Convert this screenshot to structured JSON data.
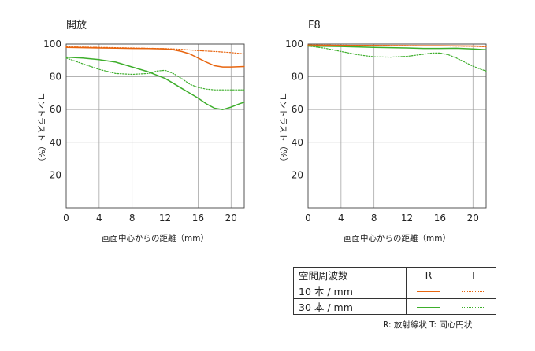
{
  "colors": {
    "r10": "#E8650F",
    "r30": "#3DAE2B"
  },
  "chart_data": [
    {
      "type": "line",
      "title": "開放",
      "xlabel": "画面中心からの距離（mm）",
      "ylabel": "コントラスト（%）",
      "xlim": [
        0,
        21.6
      ],
      "ylim": [
        0,
        100
      ],
      "xticks": [
        0,
        4,
        8,
        12,
        16,
        20
      ],
      "yticks": [
        20,
        40,
        60,
        80,
        100
      ],
      "grid": true,
      "series": [
        {
          "name": "10 本 / mm R",
          "style": "solid",
          "color": "#E8650F",
          "x": [
            0,
            2,
            4,
            6,
            8,
            10,
            12,
            13,
            14,
            15,
            16,
            17,
            18,
            19,
            20,
            21.6
          ],
          "y": [
            98,
            97.8,
            97.6,
            97.5,
            97.3,
            97.2,
            97,
            96.5,
            95.5,
            94,
            91.5,
            89,
            86.8,
            86,
            86,
            86.3
          ]
        },
        {
          "name": "10 本 / mm T",
          "style": "dotted",
          "color": "#E8650F",
          "x": [
            0,
            4,
            8,
            12,
            14,
            16,
            18,
            20,
            21.6
          ],
          "y": [
            98.3,
            98,
            97.6,
            97.2,
            96.8,
            96,
            95.5,
            94.8,
            94
          ]
        },
        {
          "name": "30 本 / mm R",
          "style": "solid",
          "color": "#3DAE2B",
          "x": [
            0,
            2,
            4,
            6,
            8,
            10,
            12,
            14,
            15,
            16,
            17,
            18,
            19,
            20,
            21,
            21.6
          ],
          "y": [
            92,
            91.5,
            90.5,
            89,
            86,
            83,
            79,
            73,
            70,
            67,
            63.5,
            60.8,
            60,
            61.5,
            63.5,
            64.5
          ]
        },
        {
          "name": "30 本 / mm T",
          "style": "dotted",
          "color": "#3DAE2B",
          "x": [
            0,
            2,
            4,
            6,
            8,
            10,
            11,
            12,
            13,
            14,
            15,
            16,
            17,
            18,
            19,
            20,
            21.6
          ],
          "y": [
            91.5,
            88,
            84.5,
            82,
            81.5,
            82,
            83.5,
            84,
            82,
            79,
            75.5,
            73.5,
            72.5,
            72,
            72,
            72,
            72
          ]
        }
      ]
    },
    {
      "type": "line",
      "title": "F8",
      "xlabel": "画面中心からの距離（mm）",
      "ylabel": "コントラスト（%）",
      "xlim": [
        0,
        21.6
      ],
      "ylim": [
        0,
        100
      ],
      "xticks": [
        0,
        4,
        8,
        12,
        16,
        20
      ],
      "yticks": [
        20,
        40,
        60,
        80,
        100
      ],
      "grid": true,
      "series": [
        {
          "name": "10 本 / mm R",
          "style": "solid",
          "color": "#E8650F",
          "x": [
            0,
            4,
            8,
            12,
            16,
            20,
            21.6
          ],
          "y": [
            99.3,
            99.2,
            99.1,
            99,
            99,
            98.8,
            98.6
          ]
        },
        {
          "name": "10 本 / mm T",
          "style": "dotted",
          "color": "#E8650F",
          "x": [
            0,
            4,
            8,
            12,
            16,
            20,
            21.6
          ],
          "y": [
            99.4,
            99.3,
            99.2,
            99.1,
            98.9,
            98.6,
            98.3
          ]
        },
        {
          "name": "30 本 / mm R",
          "style": "solid",
          "color": "#3DAE2B",
          "x": [
            0,
            4,
            8,
            12,
            14,
            16,
            18,
            20,
            21.6
          ],
          "y": [
            98.8,
            98.5,
            98,
            97.6,
            97.3,
            97.3,
            97.4,
            97,
            96.5
          ]
        },
        {
          "name": "30 本 / mm T",
          "style": "dotted",
          "color": "#3DAE2B",
          "x": [
            0,
            2,
            4,
            6,
            8,
            10,
            12,
            14,
            15,
            16,
            17,
            18,
            19,
            20,
            21,
            21.6
          ],
          "y": [
            98.8,
            97.5,
            95.5,
            93.5,
            92.2,
            92,
            92.5,
            93.8,
            94.5,
            94.5,
            93.5,
            91.5,
            89,
            86.5,
            84.5,
            83.5
          ]
        }
      ]
    }
  ],
  "legend": {
    "header": "空間周波数",
    "col_r": "R",
    "col_t": "T",
    "row_10": "10 本 / mm",
    "row_30": "30 本 / mm"
  },
  "note": "R: 放射線状  T: 同心円状"
}
